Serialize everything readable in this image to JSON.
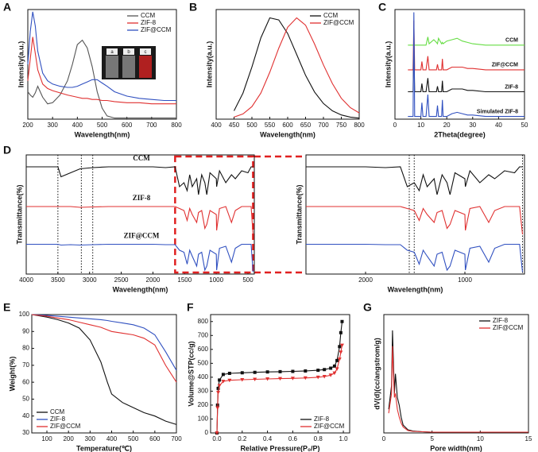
{
  "chart_data": [
    {
      "type": "line",
      "panel": "A",
      "xlabel": "Wavelength(nm)",
      "ylabel": "Intensity(a.u.)",
      "xlim": [
        200,
        800
      ],
      "xticks": [
        200,
        300,
        400,
        500,
        600,
        700,
        800
      ],
      "ylim": [
        0,
        1
      ],
      "legend": "upper right",
      "inset_labels": [
        "a",
        "b",
        "c"
      ],
      "x": [
        200,
        210,
        220,
        230,
        240,
        260,
        280,
        300,
        330,
        360,
        380,
        400,
        420,
        440,
        460,
        480,
        500,
        520,
        550,
        600,
        650,
        700,
        750,
        800
      ],
      "series": [
        {
          "name": "CCM",
          "color": "#555555",
          "values": [
            0.25,
            0.22,
            0.2,
            0.24,
            0.3,
            0.2,
            0.14,
            0.15,
            0.22,
            0.35,
            0.5,
            0.68,
            0.72,
            0.65,
            0.48,
            0.25,
            0.1,
            0.03,
            0.01,
            0.01,
            0.01,
            0.01,
            0.01,
            0.01
          ]
        },
        {
          "name": "ZIF-8",
          "color": "#e03030",
          "values": [
            0.35,
            0.55,
            0.75,
            0.6,
            0.45,
            0.32,
            0.28,
            0.26,
            0.24,
            0.22,
            0.21,
            0.2,
            0.19,
            0.19,
            0.18,
            0.18,
            0.17,
            0.17,
            0.16,
            0.15,
            0.15,
            0.14,
            0.14,
            0.14
          ]
        },
        {
          "name": "ZIF@CCM",
          "color": "#3050c0",
          "values": [
            0.5,
            0.8,
            0.98,
            0.85,
            0.62,
            0.42,
            0.35,
            0.32,
            0.3,
            0.29,
            0.29,
            0.3,
            0.32,
            0.34,
            0.36,
            0.36,
            0.33,
            0.3,
            0.25,
            0.21,
            0.19,
            0.18,
            0.17,
            0.17
          ]
        }
      ]
    },
    {
      "type": "line",
      "panel": "B",
      "xlabel": "Wavelength(nm)",
      "ylabel": "Intensity(a.u.)",
      "xlim": [
        400,
        800
      ],
      "xticks": [
        400,
        450,
        500,
        550,
        600,
        650,
        700,
        750,
        800
      ],
      "ylim": [
        0,
        1.05
      ],
      "legend": "upper right",
      "x": [
        450,
        475,
        500,
        525,
        550,
        575,
        600,
        625,
        650,
        675,
        700,
        725,
        750,
        775,
        800
      ],
      "series": [
        {
          "name": "CCM",
          "color": "#111111",
          "values": [
            0.08,
            0.25,
            0.5,
            0.78,
            0.97,
            0.95,
            0.82,
            0.62,
            0.42,
            0.26,
            0.15,
            0.08,
            0.04,
            0.02,
            0.01
          ]
        },
        {
          "name": "ZIF@CCM",
          "color": "#e03030",
          "values": [
            0.02,
            0.05,
            0.12,
            0.25,
            0.45,
            0.68,
            0.88,
            0.97,
            0.9,
            0.72,
            0.52,
            0.34,
            0.2,
            0.11,
            0.06
          ]
        }
      ]
    },
    {
      "type": "line",
      "panel": "C",
      "xlabel": "2Theta(degree)",
      "ylabel": "Intensity(a.u.)",
      "xlim": [
        0,
        50
      ],
      "xticks": [
        0,
        10,
        20,
        30,
        40,
        50
      ],
      "ylim": [
        0,
        4
      ],
      "inline_labels": true,
      "x": [
        5,
        7,
        7.3,
        7.6,
        10,
        10.4,
        10.8,
        12,
        12.7,
        13.2,
        15,
        16,
        16.4,
        16.8,
        18,
        18.3,
        18.6,
        20,
        22,
        24,
        26,
        28,
        30,
        35,
        40,
        45,
        50
      ],
      "series": [
        {
          "name": "CCM",
          "color": "#66dd44",
          "values": [
            2.7,
            2.7,
            2.7,
            2.7,
            2.7,
            2.7,
            2.7,
            2.7,
            3.0,
            2.75,
            2.9,
            2.8,
            2.75,
            2.95,
            2.75,
            2.8,
            2.75,
            2.85,
            2.9,
            2.95,
            2.85,
            2.8,
            2.75,
            2.7,
            2.7,
            2.7,
            2.7
          ]
        },
        {
          "name": "ZIF@CCM",
          "color": "#e03030",
          "values": [
            1.8,
            1.8,
            3.6,
            1.8,
            1.8,
            2.1,
            1.8,
            1.8,
            2.3,
            1.8,
            1.8,
            1.8,
            2.0,
            1.8,
            1.8,
            2.2,
            1.8,
            1.8,
            1.9,
            1.9,
            1.9,
            1.85,
            1.85,
            1.8,
            1.8,
            1.8,
            1.8
          ]
        },
        {
          "name": "ZIF-8",
          "color": "#111111",
          "values": [
            1.0,
            1.0,
            2.8,
            1.0,
            1.0,
            1.3,
            1.0,
            1.0,
            1.5,
            1.0,
            1.0,
            1.0,
            1.2,
            1.0,
            1.0,
            1.4,
            1.0,
            1.0,
            1.1,
            1.1,
            1.1,
            1.05,
            1.05,
            1.0,
            1.0,
            1.0,
            1.0
          ]
        },
        {
          "name": "Simulated ZIF-8",
          "color": "#3050c0",
          "values": [
            0.1,
            0.1,
            3.9,
            0.1,
            0.1,
            0.6,
            0.1,
            0.1,
            0.9,
            0.1,
            0.1,
            0.1,
            0.5,
            0.1,
            0.1,
            0.7,
            0.1,
            0.1,
            0.2,
            0.25,
            0.2,
            0.15,
            0.15,
            0.1,
            0.1,
            0.1,
            0.1
          ]
        }
      ]
    },
    {
      "type": "line",
      "panel": "D",
      "xlabel": "Wavelength(nm)",
      "ylabel": "Transmittance(%)",
      "xlim": [
        4000,
        400
      ],
      "xticks": [
        4000,
        3500,
        3000,
        2500,
        2000,
        1500,
        1000,
        500
      ],
      "ylim": [
        0,
        3
      ],
      "inline_labels": true,
      "ref_lines": [
        3500,
        3130,
        2950
      ],
      "highlight_range": [
        1650,
        420
      ],
      "x": [
        4000,
        3700,
        3500,
        3450,
        3300,
        3150,
        2950,
        2700,
        2400,
        2000,
        1800,
        1650,
        1580,
        1510,
        1460,
        1420,
        1380,
        1310,
        1280,
        1230,
        1180,
        1150,
        1100,
        1000,
        995,
        950,
        850,
        760,
        700,
        600,
        500,
        450,
        420
      ],
      "series": [
        {
          "name": "CCM",
          "color": "#111111",
          "values": [
            2.7,
            2.7,
            2.7,
            2.45,
            2.55,
            2.65,
            2.68,
            2.7,
            2.7,
            2.7,
            2.68,
            2.7,
            2.2,
            2.3,
            2.1,
            2.5,
            2.2,
            2.4,
            2.0,
            2.5,
            2.3,
            2.0,
            2.55,
            2.4,
            2.2,
            2.6,
            2.3,
            2.5,
            2.4,
            2.6,
            2.55,
            2.7,
            2.7
          ]
        },
        {
          "name": "ZIF-8",
          "color": "#e03030",
          "values": [
            1.7,
            1.7,
            1.7,
            1.7,
            1.7,
            1.68,
            1.69,
            1.7,
            1.7,
            1.7,
            1.7,
            1.7,
            1.65,
            1.6,
            1.35,
            1.65,
            1.5,
            1.3,
            1.55,
            1.6,
            1.15,
            1.25,
            1.6,
            1.5,
            1.1,
            1.65,
            1.7,
            1.3,
            1.6,
            1.7,
            1.7,
            1.7,
            1.0
          ]
        },
        {
          "name": "ZIF@CCM",
          "color": "#3050c0",
          "values": [
            0.75,
            0.75,
            0.75,
            0.73,
            0.74,
            0.73,
            0.74,
            0.75,
            0.75,
            0.75,
            0.74,
            0.74,
            0.6,
            0.55,
            0.25,
            0.6,
            0.45,
            0.2,
            0.5,
            0.55,
            0.1,
            0.2,
            0.6,
            0.5,
            0.1,
            0.65,
            0.7,
            0.3,
            0.65,
            0.75,
            0.75,
            0.75,
            0.05
          ]
        }
      ]
    },
    {
      "type": "line",
      "xlabel": "Wavelength(nm)",
      "ylabel": "Transmittance(%)",
      "xlim": [
        2600,
        400
      ],
      "xticks": [
        2000,
        1000
      ],
      "ylim": [
        0,
        3
      ],
      "ref_lines": [
        1560,
        1510,
        420
      ],
      "x": [
        2600,
        2000,
        1800,
        1650,
        1580,
        1510,
        1460,
        1420,
        1380,
        1310,
        1280,
        1230,
        1180,
        1150,
        1100,
        1000,
        995,
        950,
        850,
        760,
        700,
        600,
        500,
        450,
        420
      ],
      "series": [
        {
          "color": "#111111",
          "values": [
            2.7,
            2.7,
            2.68,
            2.7,
            2.2,
            2.3,
            2.1,
            2.5,
            2.2,
            2.4,
            2.0,
            2.5,
            2.3,
            2.0,
            2.55,
            2.4,
            2.2,
            2.6,
            2.3,
            2.5,
            2.4,
            2.6,
            2.55,
            2.7,
            2.7
          ]
        },
        {
          "color": "#e03030",
          "values": [
            1.7,
            1.7,
            1.7,
            1.7,
            1.65,
            1.6,
            1.35,
            1.65,
            1.5,
            1.3,
            1.55,
            1.6,
            1.15,
            1.25,
            1.6,
            1.5,
            1.1,
            1.65,
            1.7,
            1.3,
            1.6,
            1.7,
            1.7,
            1.7,
            1.0
          ]
        },
        {
          "color": "#3050c0",
          "values": [
            0.75,
            0.75,
            0.74,
            0.74,
            0.6,
            0.55,
            0.25,
            0.6,
            0.45,
            0.2,
            0.5,
            0.55,
            0.1,
            0.2,
            0.6,
            0.5,
            0.1,
            0.65,
            0.7,
            0.3,
            0.65,
            0.75,
            0.75,
            0.75,
            0.05
          ]
        }
      ]
    },
    {
      "type": "line",
      "panel": "E",
      "xlabel": "Temperature(℃)",
      "ylabel": "Weight(%)",
      "xlim": [
        30,
        700
      ],
      "xticks": [
        100,
        200,
        300,
        400,
        500,
        600,
        700
      ],
      "ylim": [
        30,
        100
      ],
      "yticks": [
        30,
        40,
        50,
        60,
        70,
        80,
        90,
        100
      ],
      "legend": "lower left",
      "x": [
        30,
        100,
        150,
        200,
        250,
        300,
        350,
        380,
        400,
        450,
        500,
        550,
        600,
        650,
        700
      ],
      "series": [
        {
          "name": "CCM",
          "color": "#111111",
          "values": [
            100,
            98.5,
            97,
            95,
            92,
            85,
            72,
            60,
            53,
            48,
            45,
            42,
            40,
            37,
            35
          ]
        },
        {
          "name": "ZIF-8",
          "color": "#3050c0",
          "values": [
            100,
            99.5,
            99,
            98.5,
            98,
            97.5,
            97,
            96.5,
            96,
            95,
            94,
            92,
            88,
            78,
            67
          ]
        },
        {
          "name": "ZIF@CCM",
          "color": "#e03030",
          "values": [
            100,
            99,
            98,
            97,
            95.5,
            94,
            92.5,
            91,
            90,
            89,
            88,
            86,
            82,
            70,
            60
          ]
        }
      ]
    },
    {
      "type": "line",
      "panel": "F",
      "xlabel": "Relative Pressure(P₀/P)",
      "ylabel": "Volume@STP(cc/g)",
      "xlim": [
        -0.05,
        1.05
      ],
      "xticks": [
        {
          "value": 0,
          "label": "0.0"
        },
        0.2,
        0.4,
        0.6,
        0.8,
        {
          "value": 1,
          "label": "1.0"
        }
      ],
      "ylim": [
        0,
        850
      ],
      "yticks": [
        0,
        100,
        200,
        300,
        400,
        500,
        600,
        700,
        800
      ],
      "legend": "lower right",
      "x": [
        0,
        0.005,
        0.01,
        0.02,
        0.05,
        0.1,
        0.2,
        0.3,
        0.4,
        0.5,
        0.6,
        0.7,
        0.8,
        0.85,
        0.9,
        0.93,
        0.95,
        0.97,
        0.98,
        0.99
      ],
      "series": [
        {
          "name": "ZIF-8",
          "color": "#111111",
          "marker": "square",
          "values": [
            0,
            200,
            320,
            380,
            420,
            428,
            432,
            435,
            438,
            440,
            442,
            445,
            450,
            455,
            465,
            480,
            520,
            620,
            720,
            800
          ]
        },
        {
          "name": "ZIF@CCM",
          "color": "#e03030",
          "marker": "triangle",
          "values": [
            0,
            180,
            290,
            340,
            370,
            378,
            382,
            385,
            388,
            390,
            392,
            395,
            400,
            405,
            415,
            430,
            460,
            530,
            580,
            630
          ]
        }
      ]
    },
    {
      "type": "line",
      "panel": "G",
      "xlabel": "Pore width(nm)",
      "ylabel": "dV(d)(cc/angstrom/g)",
      "xlim": [
        0,
        15
      ],
      "xticks": [
        0,
        5,
        10,
        15
      ],
      "ylim": [
        0,
        3
      ],
      "legend": "upper right",
      "x": [
        0.5,
        0.8,
        0.9,
        1.0,
        1.1,
        1.2,
        1.4,
        1.6,
        1.8,
        2.0,
        2.5,
        3,
        4,
        5,
        7,
        10,
        15
      ],
      "series": [
        {
          "name": "ZIF-8",
          "color": "#111111",
          "values": [
            0.6,
            1.2,
            2.6,
            1.8,
            1.0,
            1.5,
            0.9,
            0.7,
            0.4,
            0.2,
            0.08,
            0.05,
            0.03,
            0.02,
            0.02,
            0.02,
            0.02
          ]
        },
        {
          "name": "ZIF@CCM",
          "color": "#e03030",
          "values": [
            0.5,
            1.0,
            2.2,
            1.5,
            0.9,
            1.0,
            0.6,
            0.4,
            0.25,
            0.15,
            0.06,
            0.04,
            0.03,
            0.02,
            0.02,
            0.02,
            0.02
          ]
        }
      ]
    }
  ]
}
